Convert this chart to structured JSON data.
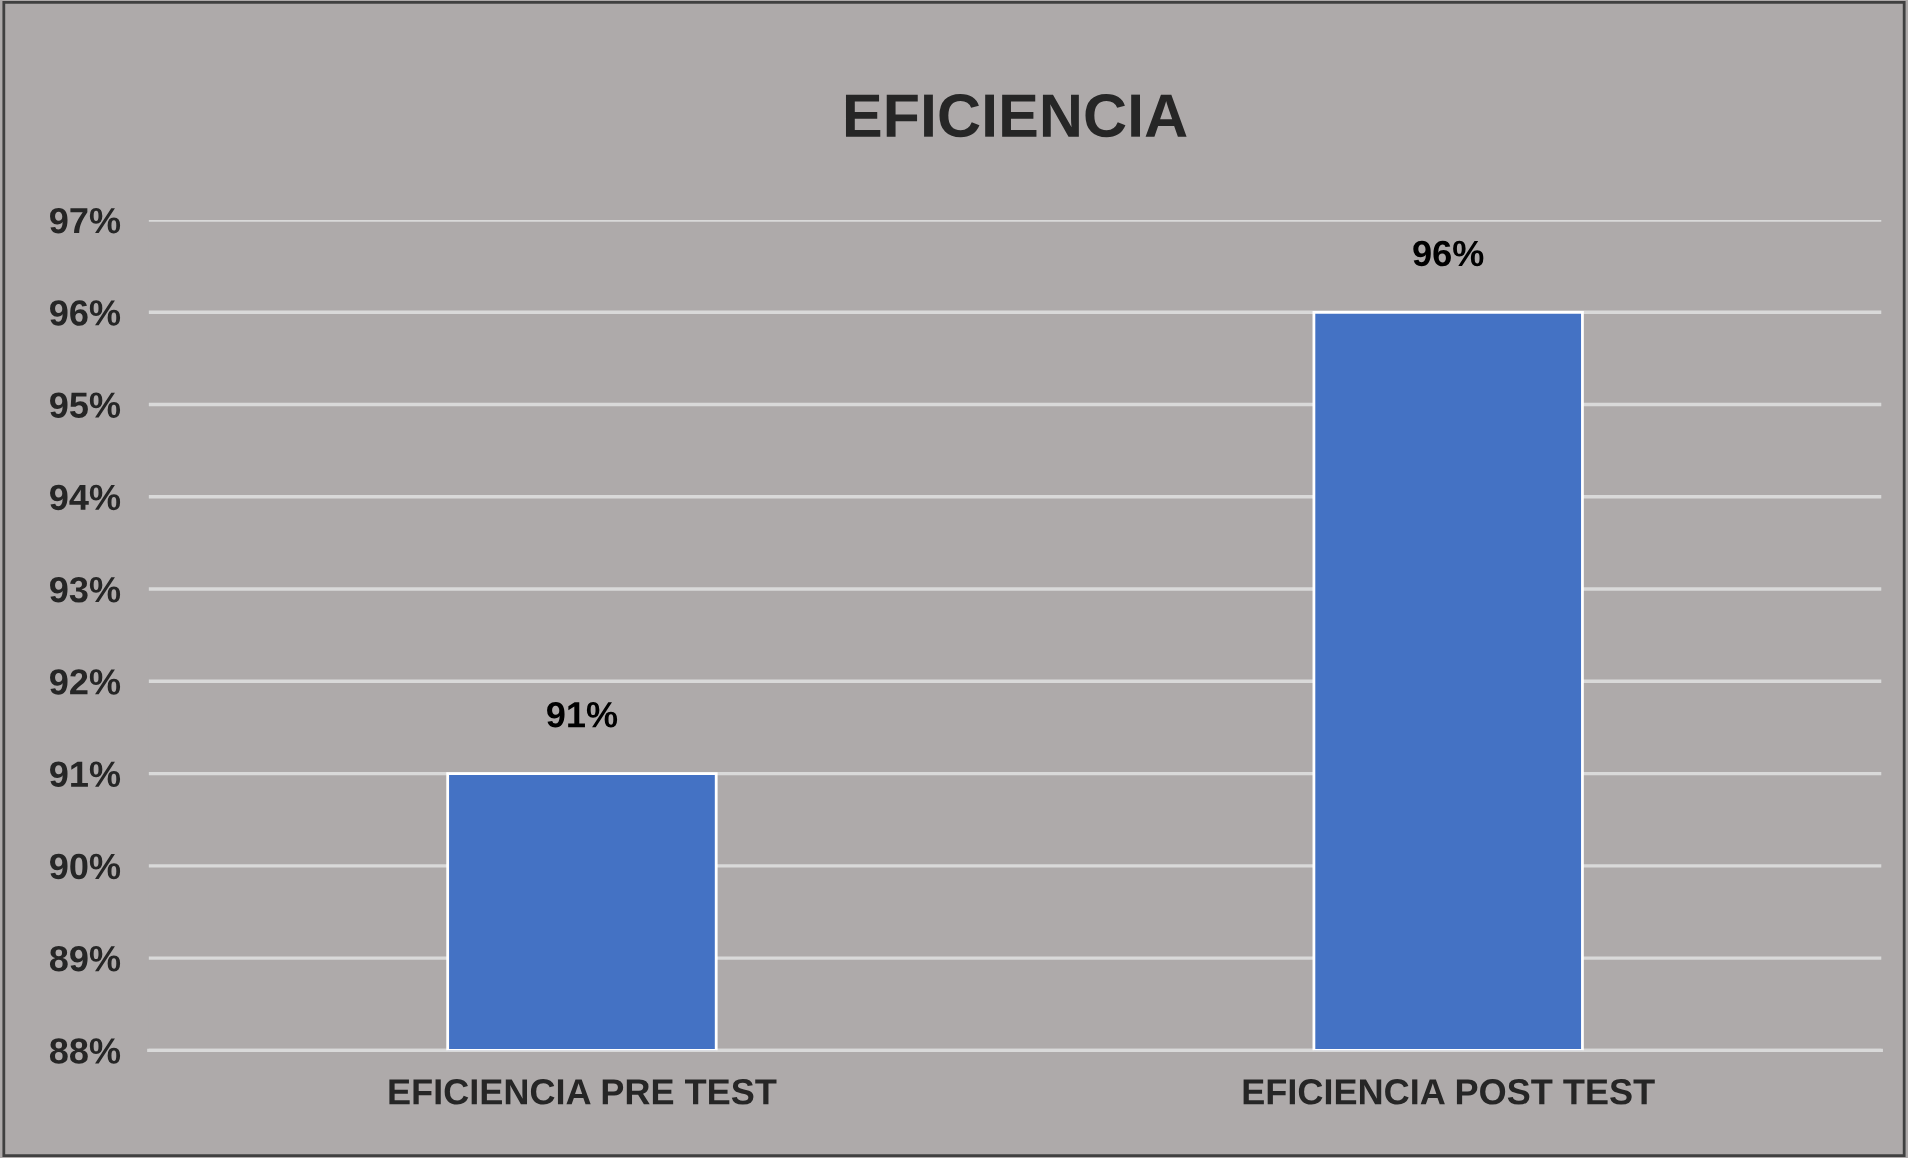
{
  "chart_data": {
    "type": "bar",
    "title": "EFICIENCIA",
    "categories": [
      "EFICIENCIA PRE TEST",
      "EFICIENCIA POST TEST"
    ],
    "values": [
      91,
      96
    ],
    "color": "#4472c4",
    "value_labels": [
      "91%",
      "96%"
    ],
    "ylim": [
      88,
      97
    ],
    "yticks": [
      {
        "value": 88,
        "label": "88%"
      },
      {
        "value": 89,
        "label": "89%"
      },
      {
        "value": 90,
        "label": "90%"
      },
      {
        "value": 91,
        "label": "91%"
      },
      {
        "value": 92,
        "label": "92%"
      },
      {
        "value": 93,
        "label": "93%"
      },
      {
        "value": 94,
        "label": "94%"
      },
      {
        "value": 95,
        "label": "95%"
      },
      {
        "value": 96,
        "label": "96%"
      },
      {
        "value": 97,
        "label": "97%"
      }
    ],
    "grid": "y",
    "legend": false
  }
}
